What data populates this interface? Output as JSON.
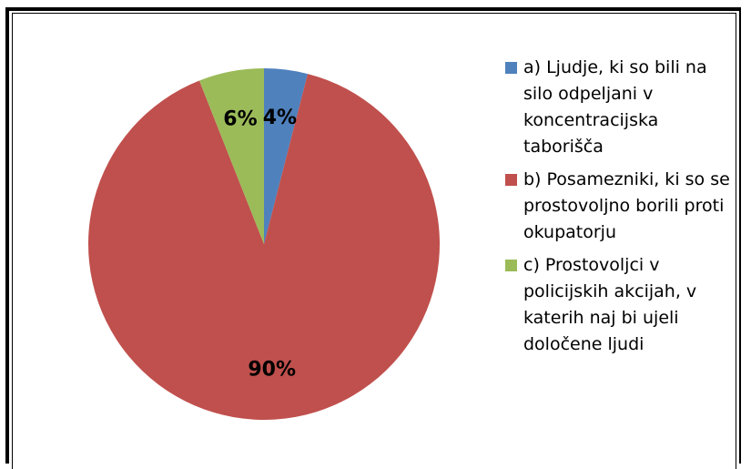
{
  "chart_data": {
    "type": "pie",
    "categories": [
      "a) Ljudje, ki so bili na silo odpeljani v koncentracijska taborišča",
      "b) Posamezniki, ki so se prostovoljno borili proti okupatorju",
      "c) Prostovoljci v policijskih akcijah, v katerih naj bi ujeli določene ljudi"
    ],
    "values": [
      4,
      90,
      6
    ],
    "value_labels": [
      "4%",
      "90%",
      "6%"
    ],
    "colors": [
      "#4f81bd",
      "#c0504d",
      "#9bbb59"
    ],
    "legend": "right"
  }
}
